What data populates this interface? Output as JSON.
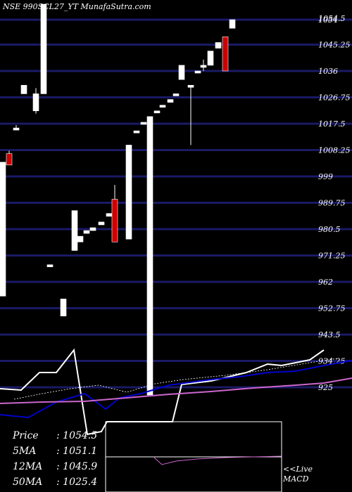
{
  "header": {
    "symbol": "NSE 990SCL27_YT",
    "site": "MunafaSutra.com"
  },
  "info_panel": {
    "price_label": "Price",
    "price_value": "1054.5",
    "ma5_label": "5MA",
    "ma5_value": "1051.1",
    "ma12_label": "12MA",
    "ma12_value": "1045.9",
    "ma50_label": "50MA",
    "ma50_value": "1025.4"
  },
  "macd_panel": {
    "live_label": "<<Live",
    "name_label": "MACD"
  },
  "colors": {
    "background": "#000000",
    "gridline": "#1a1a66",
    "up_candle": "#ffffff",
    "down_candle": "#cc0000",
    "ma_short": "#0000cc",
    "ma_long": "#cc66cc"
  },
  "chart_data": {
    "type": "candlestick",
    "title": "NSE 990SCL27_YT MunafaSutra.com",
    "yaxis": {
      "side": "right",
      "ticks": [
        "1054.5",
        "1054",
        "1045.25",
        "1036",
        "1026.75",
        "1017.5",
        "1008.25",
        "999",
        "989.75",
        "980.5",
        "971.25",
        "962",
        "952.75",
        "943.5",
        "934.25",
        "925"
      ],
      "ylim": [
        925,
        1057
      ]
    },
    "grid": true,
    "candles": [
      {
        "open": 957,
        "close": 1004,
        "high": 1004,
        "low": 957
      },
      {
        "open": 1007,
        "close": 1003,
        "high": 1008,
        "low": 1003
      },
      {
        "open": 1016,
        "close": 1016,
        "high": 1017,
        "low": 1016
      },
      {
        "open": 1028,
        "close": 1031,
        "high": 1031,
        "low": 1028
      },
      {
        "open": 1022,
        "close": 1028,
        "high": 1030,
        "low": 1021
      },
      {
        "open": 1028,
        "close": 1060,
        "high": 1060,
        "low": 1028
      },
      {
        "open": 968,
        "close": 968,
        "high": 968,
        "low": 968
      },
      {
        "open": 950,
        "close": 956,
        "high": 956,
        "low": 950
      },
      {
        "open": 973,
        "close": 987,
        "high": 987,
        "low": 973
      },
      {
        "open": 976,
        "close": 978,
        "high": 978,
        "low": 976
      },
      {
        "open": 979,
        "close": 980,
        "high": 980,
        "low": 979
      },
      {
        "open": 980,
        "close": 981,
        "high": 981,
        "low": 980
      },
      {
        "open": 982,
        "close": 983,
        "high": 983,
        "low": 982
      },
      {
        "open": 985,
        "close": 986,
        "high": 986,
        "low": 985
      },
      {
        "open": 991,
        "close": 976,
        "high": 996,
        "low": 976
      },
      {
        "open": 977,
        "close": 1010,
        "high": 1010,
        "low": 977
      },
      {
        "open": 1015,
        "close": 1015,
        "high": 1015,
        "low": 1015
      },
      {
        "open": 1018,
        "close": 1018,
        "high": 1018,
        "low": 1018
      },
      {
        "open": 918,
        "close": 1020,
        "high": 1020,
        "low": 918
      },
      {
        "open": 1022,
        "close": 1022,
        "high": 1022,
        "low": 1022
      },
      {
        "open": 1024,
        "close": 1024,
        "high": 1024,
        "low": 1024
      },
      {
        "open": 1025,
        "close": 1026,
        "high": 1026,
        "low": 1025
      },
      {
        "open": 1028,
        "close": 1028,
        "high": 1028,
        "low": 1028
      },
      {
        "open": 1033,
        "close": 1038,
        "high": 1038,
        "low": 1033
      },
      {
        "open": 1031,
        "close": 1031,
        "high": 1031,
        "low": 1010
      },
      {
        "open": 1036,
        "close": 1036,
        "high": 1036,
        "low": 1036
      },
      {
        "open": 1038,
        "close": 1038,
        "high": 1040,
        "low": 1036
      },
      {
        "open": 1038,
        "close": 1043,
        "high": 1043,
        "low": 1038
      },
      {
        "open": 1044,
        "close": 1046,
        "high": 1046,
        "low": 1044
      },
      {
        "open": 1048,
        "close": 1036,
        "high": 1048,
        "low": 1036
      },
      {
        "open": 1051,
        "close": 1054,
        "high": 1054,
        "low": 1051
      }
    ]
  }
}
